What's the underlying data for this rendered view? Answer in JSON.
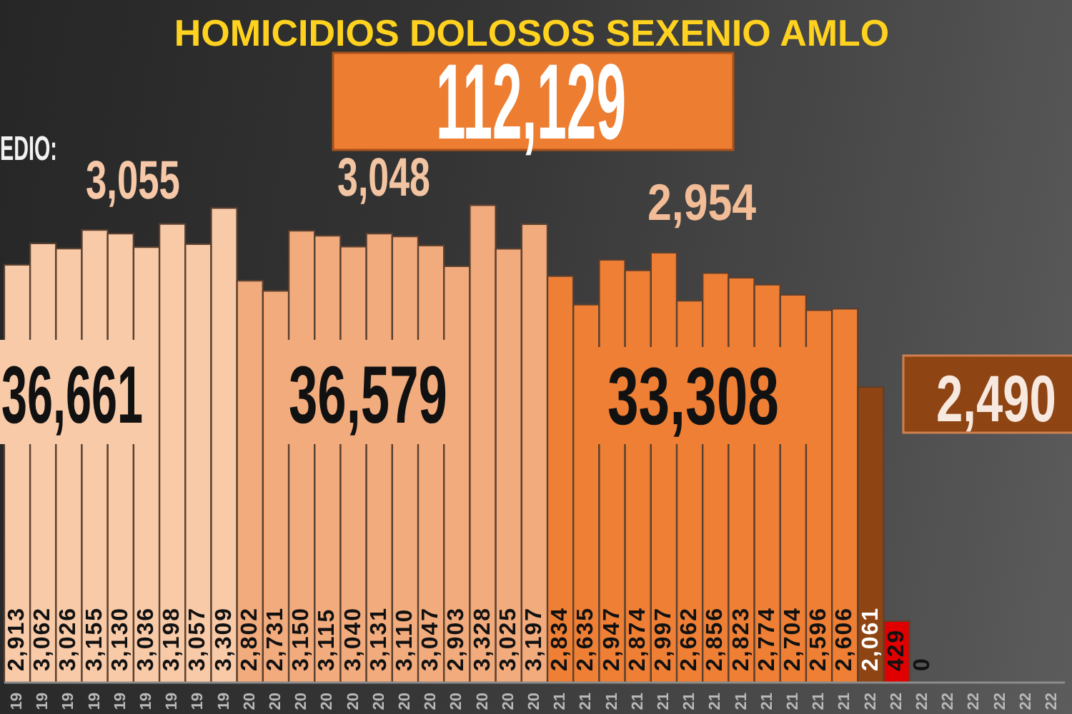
{
  "chart_data": {
    "type": "bar",
    "title": "HOMICIDIOS DOLOSOS SEXENIO AMLO",
    "categories": [
      "19",
      "19",
      "19",
      "19",
      "19",
      "19",
      "19",
      "19",
      "19",
      "20",
      "20",
      "20",
      "20",
      "20",
      "20",
      "20",
      "20",
      "20",
      "20",
      "20",
      "20",
      "21",
      "21",
      "21",
      "21",
      "21",
      "21",
      "21",
      "21",
      "21",
      "21",
      "21",
      "21",
      "22",
      "22",
      "22",
      "22",
      "22",
      "22",
      "22",
      "22"
    ],
    "values": [
      2913,
      3062,
      3026,
      3155,
      3130,
      3036,
      3198,
      3057,
      3309,
      2802,
      2731,
      3150,
      3115,
      3040,
      3131,
      3110,
      3047,
      2903,
      3328,
      3025,
      3197,
      2834,
      2635,
      2947,
      2874,
      2997,
      2662,
      2856,
      2823,
      2774,
      2704,
      2596,
      2606,
      2061,
      429,
      0,
      null,
      null,
      null,
      null,
      null
    ],
    "value_labels": [
      "2,913",
      "3,062",
      "3,026",
      "3,155",
      "3,130",
      "3,036",
      "3,198",
      "3,057",
      "3,309",
      "2,802",
      "2,731",
      "3,150",
      "3,115",
      "3,040",
      "3,131",
      "3,110",
      "3,047",
      "2,903",
      "3,328",
      "3,025",
      "3,197",
      "2,834",
      "2,635",
      "2,947",
      "2,874",
      "2,997",
      "2,662",
      "2,856",
      "2,823",
      "2,774",
      "2,704",
      "2,596",
      "2,606",
      "2,061",
      "429",
      "0",
      null,
      null,
      null,
      null,
      null
    ],
    "colors": [
      "#f8caa8",
      "#f8caa8",
      "#f8caa8",
      "#f8caa8",
      "#f8caa8",
      "#f8caa8",
      "#f8caa8",
      "#f8caa8",
      "#f8caa8",
      "#f2ab7c",
      "#f2ab7c",
      "#f2ab7c",
      "#f2ab7c",
      "#f2ab7c",
      "#f2ab7c",
      "#f2ab7c",
      "#f2ab7c",
      "#f2ab7c",
      "#f2ab7c",
      "#f2ab7c",
      "#f2ab7c",
      "#ee7f35",
      "#ee7f35",
      "#ee7f35",
      "#ee7f35",
      "#ee7f35",
      "#ee7f35",
      "#ee7f35",
      "#ee7f35",
      "#ee7f35",
      "#ee7f35",
      "#ee7f35",
      "#ee7f35",
      "#8e4413",
      "#e00000",
      "#e00000",
      null,
      null,
      null,
      null,
      null
    ],
    "annotations": [
      "112,129",
      "EDIO:",
      "3,055",
      "3,048",
      "2,954",
      "36,661",
      "36,579",
      "33,308",
      "2,490"
    ]
  }
}
